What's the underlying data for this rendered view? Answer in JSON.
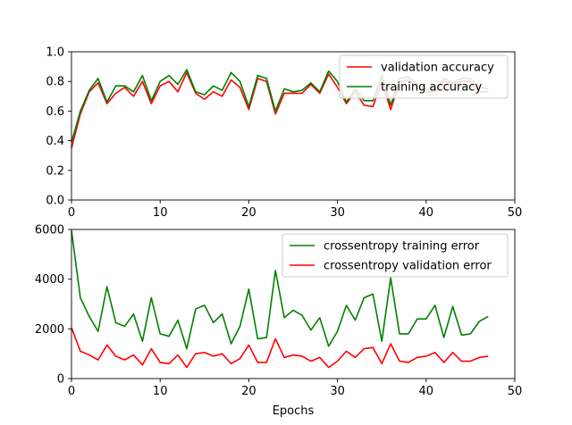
{
  "chart_data": [
    {
      "type": "line",
      "title": "",
      "xlabel": "",
      "ylabel": "",
      "xlim": [
        0,
        50
      ],
      "ylim": [
        0,
        1.0
      ],
      "xticks": [
        "0",
        "10",
        "20",
        "30",
        "40",
        "50"
      ],
      "yticks": [
        "0.0",
        "0.2",
        "0.4",
        "0.6",
        "0.8",
        "1.0"
      ],
      "grid": false,
      "legend_position": "top-right",
      "x": [
        0,
        1,
        2,
        3,
        4,
        5,
        6,
        7,
        8,
        9,
        10,
        11,
        12,
        13,
        14,
        15,
        16,
        17,
        18,
        19,
        20,
        21,
        22,
        23,
        24,
        25,
        26,
        27,
        28,
        29,
        30,
        31,
        32,
        33,
        34,
        35,
        36,
        37,
        38,
        39,
        40,
        41,
        42,
        43,
        44,
        45,
        46,
        47
      ],
      "series": [
        {
          "name": "validation accuracy",
          "color": "#ff0000",
          "values": [
            0.35,
            0.58,
            0.73,
            0.79,
            0.65,
            0.72,
            0.76,
            0.7,
            0.8,
            0.65,
            0.77,
            0.8,
            0.73,
            0.86,
            0.72,
            0.68,
            0.73,
            0.7,
            0.81,
            0.76,
            0.61,
            0.82,
            0.8,
            0.58,
            0.72,
            0.72,
            0.72,
            0.78,
            0.72,
            0.85,
            0.76,
            0.65,
            0.73,
            0.64,
            0.63,
            0.8,
            0.61,
            0.8,
            0.81,
            0.76,
            0.73,
            0.73,
            0.8,
            0.78,
            0.8,
            0.8,
            0.73,
            0.73
          ]
        },
        {
          "name": "training accuracy",
          "color": "#008000",
          "values": [
            0.39,
            0.6,
            0.74,
            0.82,
            0.66,
            0.77,
            0.77,
            0.73,
            0.84,
            0.67,
            0.8,
            0.84,
            0.78,
            0.88,
            0.73,
            0.71,
            0.77,
            0.74,
            0.86,
            0.8,
            0.63,
            0.84,
            0.82,
            0.6,
            0.75,
            0.73,
            0.74,
            0.79,
            0.73,
            0.87,
            0.8,
            0.66,
            0.75,
            0.67,
            0.67,
            0.84,
            0.64,
            0.82,
            0.83,
            0.78,
            0.75,
            0.74,
            0.82,
            0.79,
            0.82,
            0.82,
            0.76,
            0.75
          ]
        }
      ]
    },
    {
      "type": "line",
      "title": "",
      "xlabel": "Epochs",
      "ylabel": "",
      "xlim": [
        0,
        50
      ],
      "ylim": [
        0,
        6000
      ],
      "xticks": [
        "0",
        "10",
        "20",
        "30",
        "40",
        "50"
      ],
      "yticks": [
        "0",
        "2000",
        "4000",
        "6000"
      ],
      "grid": false,
      "legend_position": "top-right",
      "x": [
        0,
        1,
        2,
        3,
        4,
        5,
        6,
        7,
        8,
        9,
        10,
        11,
        12,
        13,
        14,
        15,
        16,
        17,
        18,
        19,
        20,
        21,
        22,
        23,
        24,
        25,
        26,
        27,
        28,
        29,
        30,
        31,
        32,
        33,
        34,
        35,
        36,
        37,
        38,
        39,
        40,
        41,
        42,
        43,
        44,
        45,
        46,
        47
      ],
      "series": [
        {
          "name": "crossentropy training error",
          "color": "#008000",
          "values": [
            5950,
            3250,
            2500,
            1900,
            3700,
            2250,
            2100,
            2600,
            1500,
            3250,
            1800,
            1700,
            2350,
            1200,
            2800,
            2950,
            2250,
            2600,
            1400,
            2100,
            3600,
            1600,
            1650,
            4350,
            2450,
            2750,
            2550,
            1950,
            2450,
            1300,
            1900,
            2950,
            2350,
            3250,
            3400,
            1500,
            4050,
            1800,
            1800,
            2400,
            2400,
            2950,
            1650,
            2900,
            1750,
            1800,
            2300,
            2500
          ]
        },
        {
          "name": "crossentropy validation error",
          "color": "#ff0000",
          "values": [
            2050,
            1100,
            950,
            750,
            1350,
            900,
            750,
            950,
            550,
            1200,
            650,
            600,
            950,
            450,
            1000,
            1050,
            900,
            1000,
            600,
            800,
            1350,
            650,
            650,
            1600,
            850,
            950,
            900,
            700,
            850,
            450,
            700,
            1100,
            850,
            1200,
            1250,
            600,
            1400,
            700,
            650,
            850,
            900,
            1050,
            650,
            1050,
            700,
            700,
            850,
            900
          ]
        }
      ]
    }
  ]
}
